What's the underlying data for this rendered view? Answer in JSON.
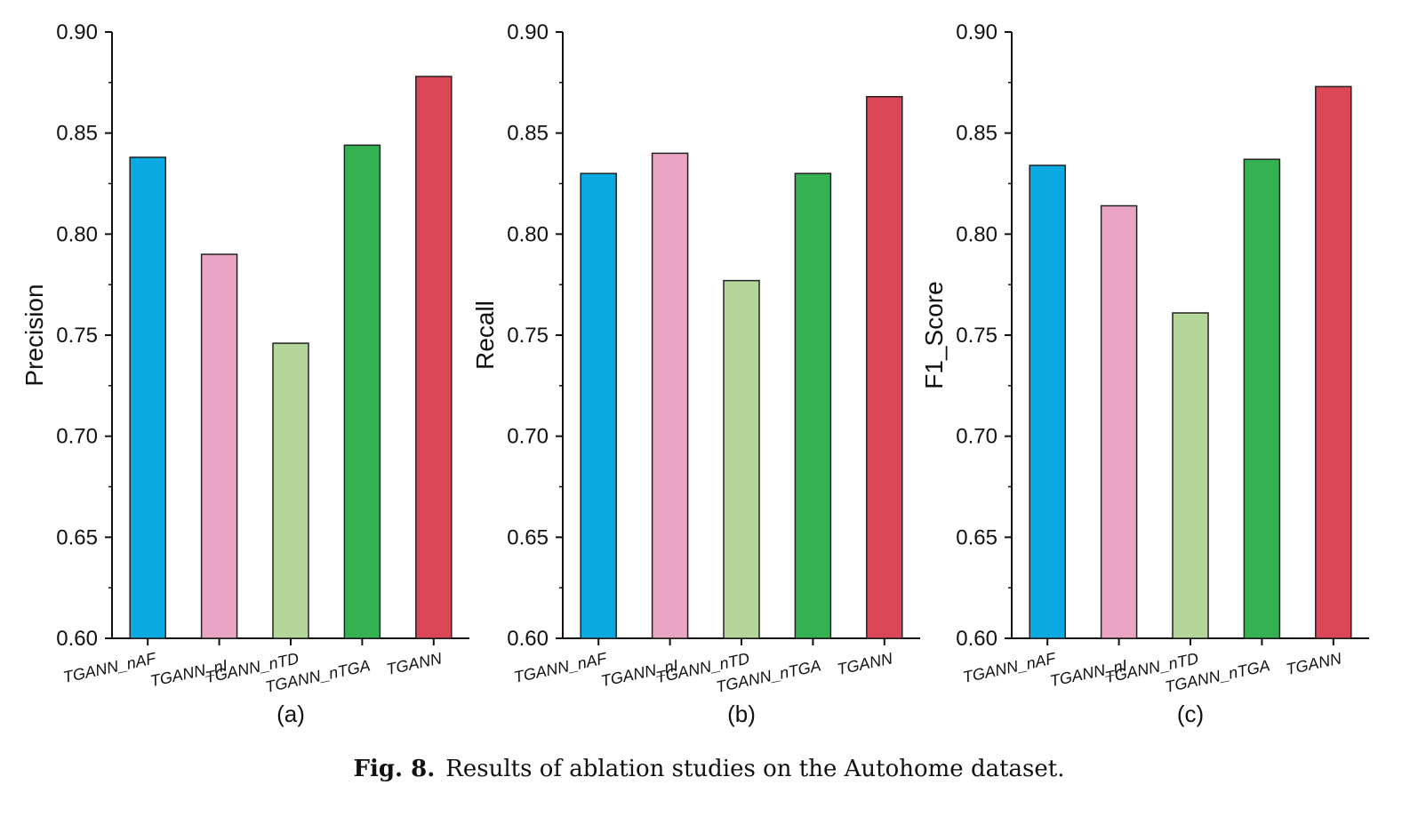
{
  "figure": {
    "caption_label": "Fig. 8.",
    "caption_text": "Results of ablation studies on the Autohome dataset."
  },
  "chart_data": [
    {
      "type": "bar",
      "panel_label": "(a)",
      "ylabel": "Precision",
      "xlabel": "",
      "categories": [
        "TGANN_nAF",
        "TGANN_nI",
        "TGANN_nTD",
        "TGANN_nTGA",
        "TGANN"
      ],
      "values": [
        0.838,
        0.79,
        0.746,
        0.844,
        0.878
      ],
      "colors": [
        "#0aa9e1",
        "#eaa4c4",
        "#b5d69b",
        "#34b150",
        "#dc4757"
      ],
      "ylim": [
        0.6,
        0.9
      ],
      "yticks": [
        "0.60",
        "0.65",
        "0.70",
        "0.75",
        "0.80",
        "0.85",
        "0.90"
      ],
      "grid": false
    },
    {
      "type": "bar",
      "panel_label": "(b)",
      "ylabel": "Recall",
      "xlabel": "",
      "categories": [
        "TGANN_nAF",
        "TGANN_nI",
        "TGANN_nTD",
        "TGANN_nTGA",
        "TGANN"
      ],
      "values": [
        0.83,
        0.84,
        0.777,
        0.83,
        0.868
      ],
      "colors": [
        "#0aa9e1",
        "#eaa4c4",
        "#b5d69b",
        "#34b150",
        "#dc4757"
      ],
      "ylim": [
        0.6,
        0.9
      ],
      "yticks": [
        "0.60",
        "0.65",
        "0.70",
        "0.75",
        "0.80",
        "0.85",
        "0.90"
      ],
      "grid": false
    },
    {
      "type": "bar",
      "panel_label": "(c)",
      "ylabel": "F1_Score",
      "xlabel": "",
      "categories": [
        "TGANN_nAF",
        "TGANN_nI",
        "TGANN_nTD",
        "TGANN_nTGA",
        "TGANN"
      ],
      "values": [
        0.834,
        0.814,
        0.761,
        0.837,
        0.873
      ],
      "colors": [
        "#0aa9e1",
        "#eaa4c4",
        "#b5d69b",
        "#34b150",
        "#dc4757"
      ],
      "ylim": [
        0.6,
        0.9
      ],
      "yticks": [
        "0.60",
        "0.65",
        "0.70",
        "0.75",
        "0.80",
        "0.85",
        "0.90"
      ],
      "grid": false
    }
  ]
}
